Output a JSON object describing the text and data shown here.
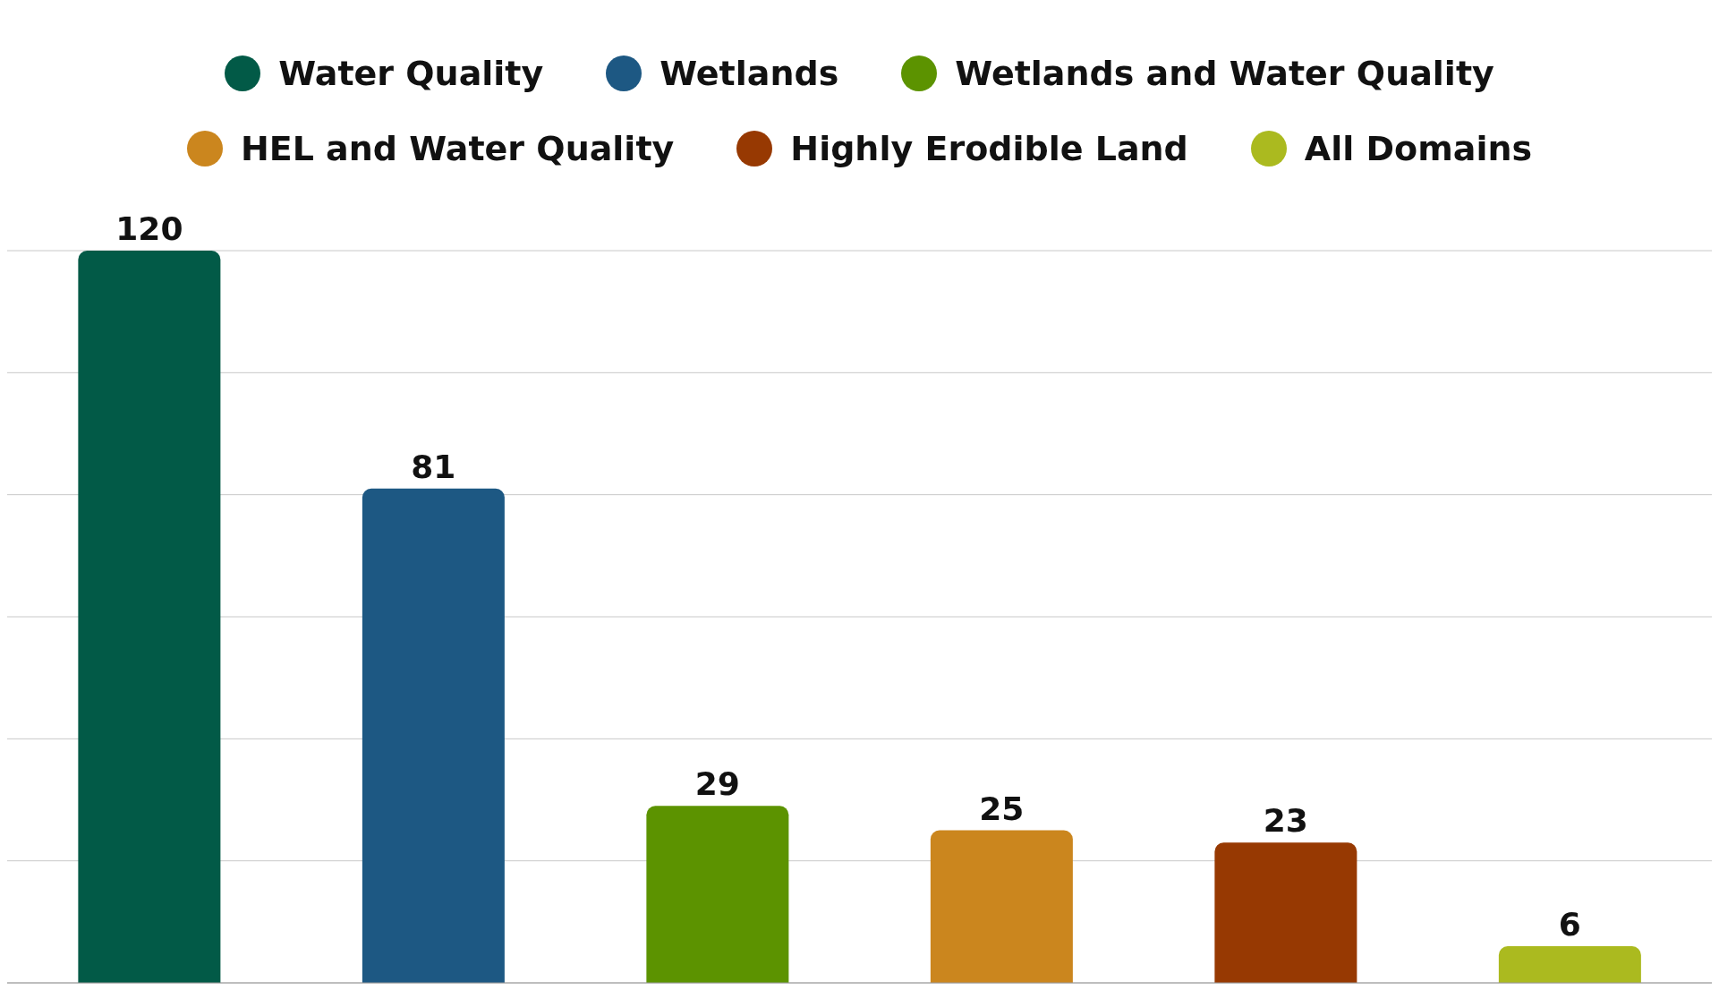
{
  "chart_data": {
    "type": "bar",
    "categories": [
      null,
      null,
      null,
      null,
      null,
      null
    ],
    "stacked": true,
    "series": [
      {
        "name": "Water Quality",
        "color": "#025a47",
        "values": [
          120,
          null,
          null,
          null,
          null,
          null
        ]
      },
      {
        "name": "Wetlands",
        "color": "#1d5883",
        "values": [
          null,
          81,
          null,
          null,
          null,
          null
        ]
      },
      {
        "name": "Wetlands and Water Quality",
        "color": "#5c9300",
        "values": [
          null,
          null,
          29,
          null,
          null,
          null
        ]
      },
      {
        "name": "HEL and Water Quality",
        "color": "#cb861e",
        "values": [
          null,
          null,
          null,
          25,
          null,
          null
        ]
      },
      {
        "name": "Highly Erodible Land",
        "color": "#973902",
        "values": [
          null,
          null,
          null,
          null,
          23,
          null
        ]
      },
      {
        "name": "All Domains",
        "color": "#abba1f",
        "values": [
          null,
          null,
          null,
          null,
          null,
          6
        ]
      }
    ],
    "ylim": [
      0,
      120
    ],
    "yticks": [
      0,
      20,
      40,
      60,
      80,
      100,
      120
    ],
    "grid": "y",
    "tick_labels": false,
    "legend": "top",
    "data_labels": true
  }
}
